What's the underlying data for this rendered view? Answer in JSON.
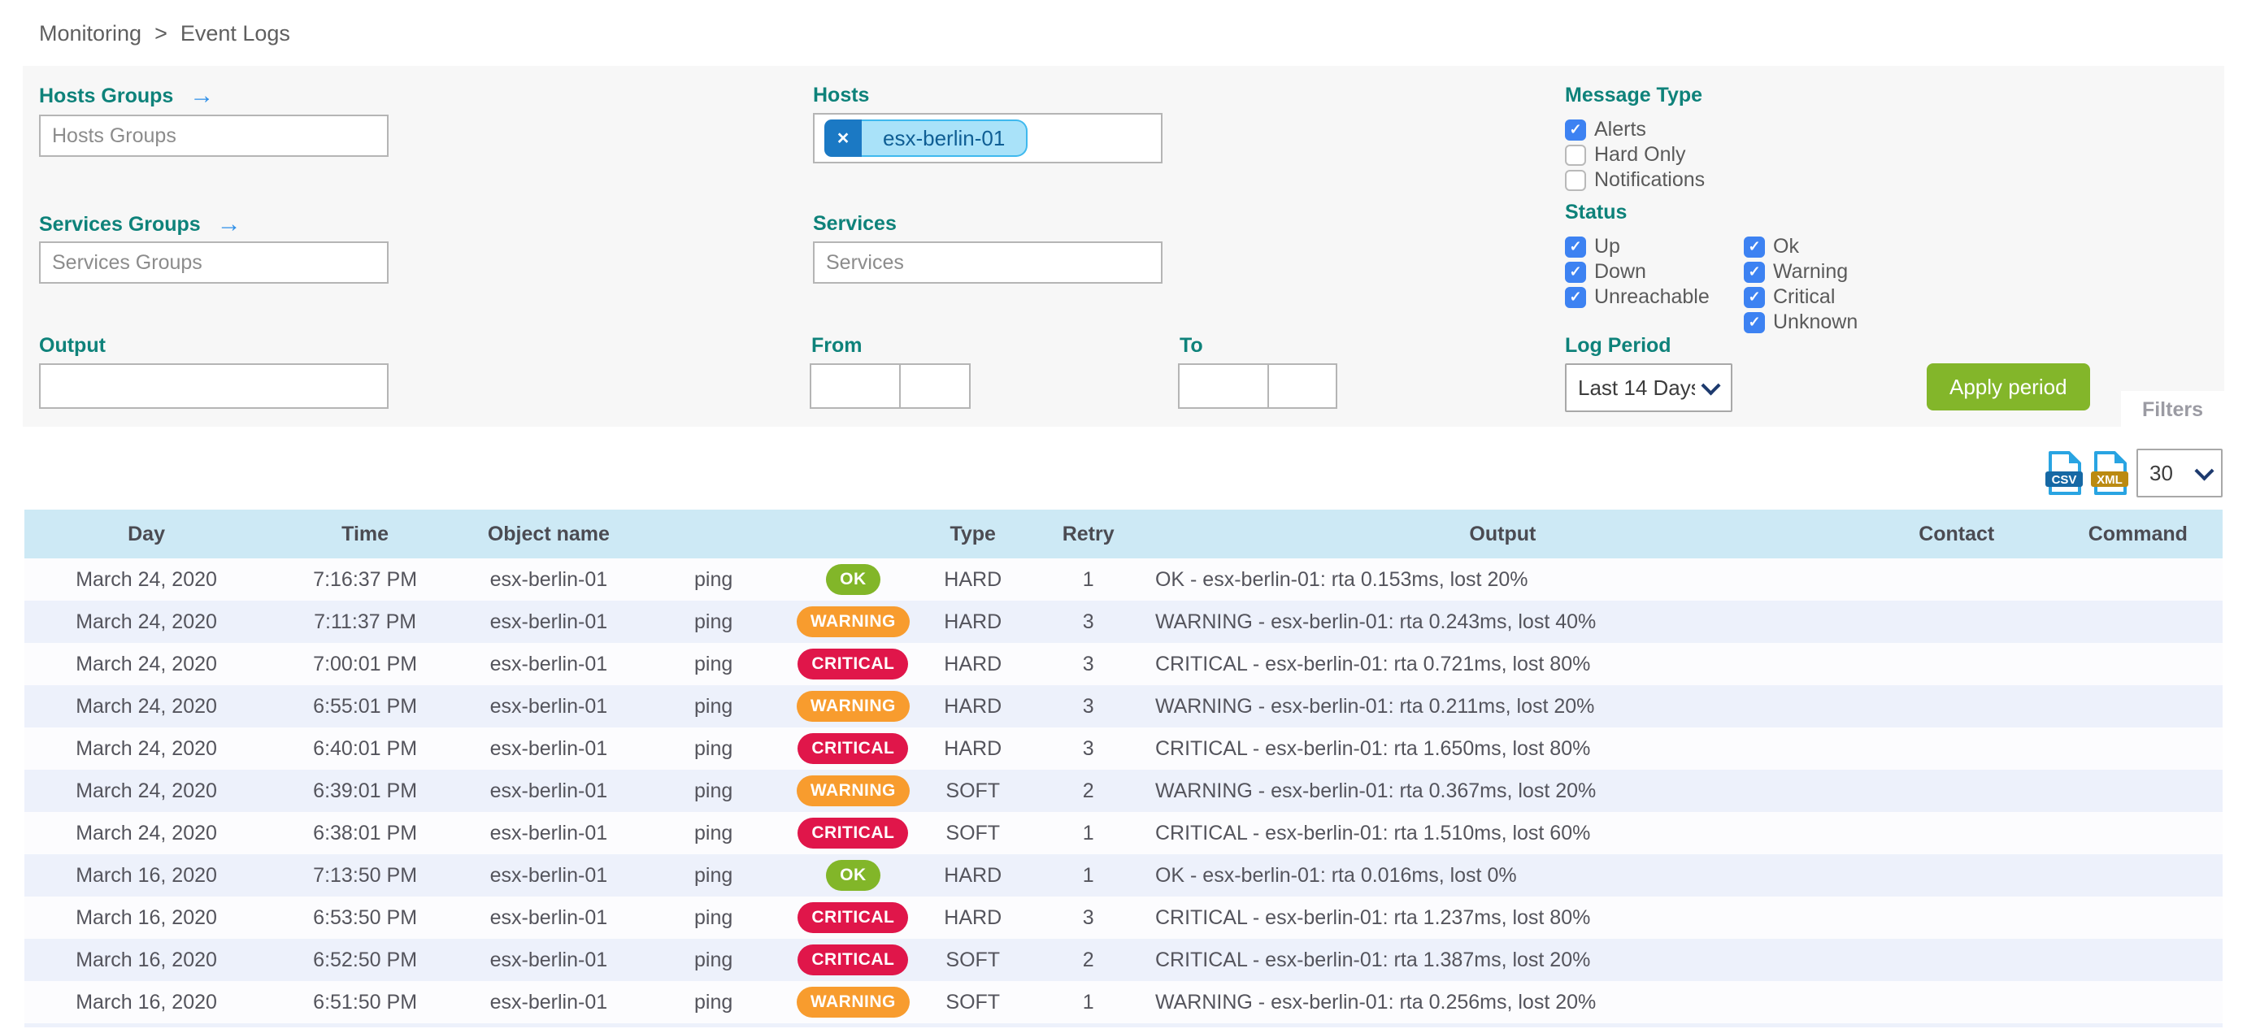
{
  "breadcrumb": {
    "items": [
      "Monitoring",
      "Event Logs"
    ],
    "separator": ">"
  },
  "filters": {
    "hosts_groups": {
      "label": "Hosts Groups",
      "placeholder": "Hosts Groups",
      "arrow_icon": "→"
    },
    "services_groups": {
      "label": "Services Groups",
      "placeholder": "Services Groups",
      "arrow_icon": "→"
    },
    "hosts": {
      "label": "Hosts",
      "selected": [
        "esx-berlin-01"
      ],
      "remove_icon": "×"
    },
    "services": {
      "label": "Services",
      "placeholder": "Services"
    },
    "message_type": {
      "label": "Message Type",
      "options": [
        {
          "label": "Alerts",
          "checked": true
        },
        {
          "label": "Hard Only",
          "checked": false
        },
        {
          "label": "Notifications",
          "checked": false
        }
      ]
    },
    "status": {
      "label": "Status",
      "host_options": [
        {
          "label": "Up",
          "checked": true
        },
        {
          "label": "Down",
          "checked": true
        },
        {
          "label": "Unreachable",
          "checked": true
        }
      ],
      "service_options": [
        {
          "label": "Ok",
          "checked": true
        },
        {
          "label": "Warning",
          "checked": true
        },
        {
          "label": "Critical",
          "checked": true
        },
        {
          "label": "Unknown",
          "checked": true
        }
      ]
    },
    "output": {
      "label": "Output",
      "value": ""
    },
    "from": {
      "label": "From",
      "date_value": "",
      "time_value": ""
    },
    "to": {
      "label": "To",
      "date_value": "",
      "time_value": ""
    },
    "log_period": {
      "label": "Log Period",
      "selected": "Last 14 Days"
    },
    "apply_button_label": "Apply period",
    "filters_tab_label": "Filters"
  },
  "toolbar": {
    "csv_icon_label": "CSV",
    "xml_icon_label": "XML",
    "page_size": "30"
  },
  "table": {
    "columns": [
      {
        "key": "day",
        "label": "Day"
      },
      {
        "key": "time",
        "label": "Time"
      },
      {
        "key": "object",
        "label": "Object name"
      },
      {
        "key": "service",
        "label": ""
      },
      {
        "key": "status",
        "label": ""
      },
      {
        "key": "type",
        "label": "Type"
      },
      {
        "key": "retry",
        "label": "Retry"
      },
      {
        "key": "output",
        "label": "Output"
      },
      {
        "key": "contact",
        "label": "Contact"
      },
      {
        "key": "command",
        "label": "Command"
      }
    ],
    "rows": [
      {
        "day": "March 24, 2020",
        "time": "7:16:37 PM",
        "object": "esx-berlin-01",
        "service": "ping",
        "status": "OK",
        "type": "HARD",
        "retry": "1",
        "output": "OK - esx-berlin-01: rta 0.153ms, lost 20%",
        "contact": "",
        "command": ""
      },
      {
        "day": "March 24, 2020",
        "time": "7:11:37 PM",
        "object": "esx-berlin-01",
        "service": "ping",
        "status": "WARNING",
        "type": "HARD",
        "retry": "3",
        "output": "WARNING - esx-berlin-01: rta 0.243ms, lost 40%",
        "contact": "",
        "command": ""
      },
      {
        "day": "March 24, 2020",
        "time": "7:00:01 PM",
        "object": "esx-berlin-01",
        "service": "ping",
        "status": "CRITICAL",
        "type": "HARD",
        "retry": "3",
        "output": "CRITICAL - esx-berlin-01: rta 0.721ms, lost 80%",
        "contact": "",
        "command": ""
      },
      {
        "day": "March 24, 2020",
        "time": "6:55:01 PM",
        "object": "esx-berlin-01",
        "service": "ping",
        "status": "WARNING",
        "type": "HARD",
        "retry": "3",
        "output": "WARNING - esx-berlin-01: rta 0.211ms, lost 20%",
        "contact": "",
        "command": ""
      },
      {
        "day": "March 24, 2020",
        "time": "6:40:01 PM",
        "object": "esx-berlin-01",
        "service": "ping",
        "status": "CRITICAL",
        "type": "HARD",
        "retry": "3",
        "output": "CRITICAL - esx-berlin-01: rta 1.650ms, lost 80%",
        "contact": "",
        "command": ""
      },
      {
        "day": "March 24, 2020",
        "time": "6:39:01 PM",
        "object": "esx-berlin-01",
        "service": "ping",
        "status": "WARNING",
        "type": "SOFT",
        "retry": "2",
        "output": "WARNING - esx-berlin-01: rta 0.367ms, lost 20%",
        "contact": "",
        "command": ""
      },
      {
        "day": "March 24, 2020",
        "time": "6:38:01 PM",
        "object": "esx-berlin-01",
        "service": "ping",
        "status": "CRITICAL",
        "type": "SOFT",
        "retry": "1",
        "output": "CRITICAL - esx-berlin-01: rta 1.510ms, lost 60%",
        "contact": "",
        "command": ""
      },
      {
        "day": "March 16, 2020",
        "time": "7:13:50 PM",
        "object": "esx-berlin-01",
        "service": "ping",
        "status": "OK",
        "type": "HARD",
        "retry": "1",
        "output": "OK - esx-berlin-01: rta 0.016ms, lost 0%",
        "contact": "",
        "command": ""
      },
      {
        "day": "March 16, 2020",
        "time": "6:53:50 PM",
        "object": "esx-berlin-01",
        "service": "ping",
        "status": "CRITICAL",
        "type": "HARD",
        "retry": "3",
        "output": "CRITICAL - esx-berlin-01: rta 1.237ms, lost 80%",
        "contact": "",
        "command": ""
      },
      {
        "day": "March 16, 2020",
        "time": "6:52:50 PM",
        "object": "esx-berlin-01",
        "service": "ping",
        "status": "CRITICAL",
        "type": "SOFT",
        "retry": "2",
        "output": "CRITICAL - esx-berlin-01: rta 1.387ms, lost 20%",
        "contact": "",
        "command": ""
      },
      {
        "day": "March 16, 2020",
        "time": "6:51:50 PM",
        "object": "esx-berlin-01",
        "service": "ping",
        "status": "WARNING",
        "type": "SOFT",
        "retry": "1",
        "output": "WARNING - esx-berlin-01: rta 0.256ms, lost 20%",
        "contact": "",
        "command": ""
      }
    ]
  },
  "colors": {
    "accent_teal": "#0e827a",
    "link_blue": "#2e8fe8",
    "checkbox_blue": "#3d82f2",
    "apply_green": "#83b62a",
    "status_ok": "#82b629",
    "status_warning": "#f89c2e",
    "status_critical": "#e0164a",
    "table_header_blue": "#cde9f5",
    "row_alt_blue": "#edf1fb",
    "chip_bg": "#a9e2f9",
    "chip_border": "#3fb9ee",
    "chip_delete_blue": "#1b79c4",
    "csv_badge": "#1668a4",
    "xml_badge": "#bb8a11",
    "file_icon_blue": "#29a4e2"
  }
}
